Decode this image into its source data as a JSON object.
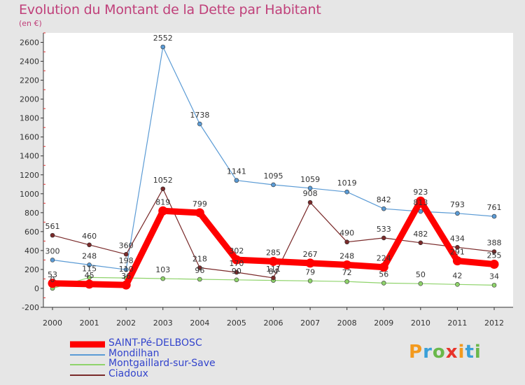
{
  "title": "Evolution du Montant de la Dette par Habitant",
  "subtitle": "(en €)",
  "logo": {
    "letters": [
      {
        "ch": "P",
        "color": "#f39a1e"
      },
      {
        "ch": "r",
        "color": "#3aa0d8"
      },
      {
        "ch": "o",
        "color": "#6ab84a"
      },
      {
        "ch": "x",
        "color": "#e8332a"
      },
      {
        "ch": "i",
        "color": "#f39a1e"
      },
      {
        "ch": "t",
        "color": "#3aa0d8"
      },
      {
        "ch": "i",
        "color": "#6ab84a"
      }
    ]
  },
  "chart_data": {
    "type": "line",
    "title": "Evolution du Montant de la Dette par Habitant",
    "subtitle": "(en €)",
    "x": [
      "2000",
      "2001",
      "2002",
      "2003",
      "2004",
      "2005",
      "2006",
      "2007",
      "2008",
      "2009",
      "2010",
      "2011",
      "2012"
    ],
    "ylim": [
      -200,
      2700
    ],
    "yticks": [
      -200,
      0,
      200,
      400,
      600,
      800,
      1000,
      1200,
      1400,
      1600,
      1800,
      2000,
      2200,
      2400,
      2600
    ],
    "grid": false,
    "legend_position": "bottom-left",
    "series": [
      {
        "name": "SAINT-Pé-DELBOSC",
        "color": "#ff0000",
        "emphasis": true,
        "values": [
          53,
          45,
          36,
          819,
          799,
          302,
          285,
          267,
          248,
          224,
          923,
          291,
          255
        ]
      },
      {
        "name": "Mondilhan",
        "color": "#5b9bd5",
        "emphasis": false,
        "values": [
          300,
          248,
          198,
          2552,
          1738,
          1141,
          1095,
          1059,
          1019,
          842,
          813,
          793,
          761
        ]
      },
      {
        "name": "Montgaillard-sur-Save",
        "color": "#8fd36b",
        "emphasis": false,
        "values": [
          0,
          115,
          110,
          103,
          96,
          90,
          84,
          79,
          72,
          56,
          50,
          42,
          34
        ]
      },
      {
        "name": "Ciadoux",
        "color": "#7a2a2a",
        "emphasis": false,
        "values": [
          561,
          460,
          360,
          1052,
          218,
          170,
          111,
          908,
          490,
          533,
          482,
          434,
          388
        ]
      }
    ]
  }
}
